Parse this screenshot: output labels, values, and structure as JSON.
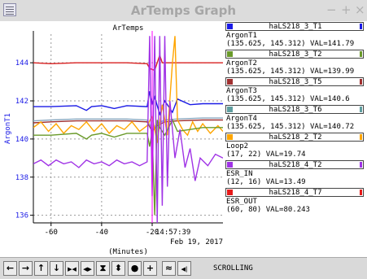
{
  "window": {
    "title": "ArTemps Graph",
    "minimize": "−",
    "maximize": "+",
    "close": "×"
  },
  "chart_data": {
    "type": "line",
    "title": "ArTemps",
    "xlabel": "(Minutes)",
    "ylabel": "ArgonT1",
    "xlim": [
      -67,
      8
    ],
    "ylim": [
      135.6,
      145.5
    ],
    "xticks": [
      "-60",
      "-40",
      "-20"
    ],
    "xtick_values": [
      -60,
      -40,
      -20
    ],
    "yticks": [
      "136",
      "138",
      "140",
      "142",
      "144"
    ],
    "ytick_values": [
      136,
      138,
      140,
      142,
      144
    ],
    "grid": true,
    "time_label": "14:57:39",
    "date_label": "Feb 19, 2017",
    "cursor_x": -20,
    "series": [
      {
        "name": "ArgonT1",
        "color": "#d82020",
        "points": [
          [
            -67,
            144.0
          ],
          [
            -60,
            143.95
          ],
          [
            -50,
            144.0
          ],
          [
            -40,
            144.0
          ],
          [
            -30,
            144.0
          ],
          [
            -22,
            143.95
          ],
          [
            -21,
            143.7
          ],
          [
            -19,
            143.6
          ],
          [
            -17,
            144.4
          ],
          [
            -16,
            144.0
          ],
          [
            -10,
            144.0
          ],
          [
            0,
            144.0
          ],
          [
            8,
            144.0
          ]
        ]
      },
      {
        "name": "ArgonT2",
        "color": "#1a1ae6",
        "points": [
          [
            -67,
            141.7
          ],
          [
            -60,
            141.7
          ],
          [
            -50,
            141.75
          ],
          [
            -46,
            141.5
          ],
          [
            -44,
            141.7
          ],
          [
            -40,
            141.75
          ],
          [
            -35,
            141.6
          ],
          [
            -30,
            141.75
          ],
          [
            -22,
            141.7
          ],
          [
            -21,
            142.5
          ],
          [
            -20,
            141.8
          ],
          [
            -19,
            142.2
          ],
          [
            -17,
            141.3
          ],
          [
            -15,
            142.0
          ],
          [
            -12,
            141.4
          ],
          [
            -10,
            142.1
          ],
          [
            -5,
            141.8
          ],
          [
            0,
            141.85
          ],
          [
            8,
            141.85
          ]
        ]
      },
      {
        "name": "ArgonT3",
        "color": "#a03030",
        "points": [
          [
            -67,
            140.85
          ],
          [
            -60,
            140.9
          ],
          [
            -50,
            140.95
          ],
          [
            -40,
            140.95
          ],
          [
            -30,
            140.95
          ],
          [
            -22,
            140.9
          ],
          [
            -20,
            140.4
          ],
          [
            -18,
            140.7
          ],
          [
            -15,
            140.9
          ],
          [
            -10,
            140.95
          ],
          [
            0,
            141.0
          ],
          [
            8,
            141.0
          ]
        ]
      },
      {
        "name": "ArgonT4",
        "color": "#8aa8c0",
        "points": [
          [
            -67,
            140.95
          ],
          [
            -60,
            141.0
          ],
          [
            -50,
            141.05
          ],
          [
            -40,
            141.05
          ],
          [
            -30,
            141.05
          ],
          [
            -22,
            141.0
          ],
          [
            -20,
            140.5
          ],
          [
            -18,
            140.8
          ],
          [
            -15,
            141.0
          ],
          [
            -10,
            141.05
          ],
          [
            0,
            141.1
          ],
          [
            8,
            141.1
          ]
        ]
      },
      {
        "name": "Loop2",
        "color": "#ffa500",
        "points": [
          [
            -67,
            140.6
          ],
          [
            -64,
            140.9
          ],
          [
            -61,
            140.4
          ],
          [
            -58,
            140.8
          ],
          [
            -55,
            140.3
          ],
          [
            -52,
            140.7
          ],
          [
            -49,
            140.5
          ],
          [
            -46,
            140.9
          ],
          [
            -43,
            140.4
          ],
          [
            -40,
            140.8
          ],
          [
            -37,
            140.3
          ],
          [
            -34,
            140.7
          ],
          [
            -31,
            140.5
          ],
          [
            -28,
            140.9
          ],
          [
            -25,
            140.4
          ],
          [
            -22,
            140.7
          ],
          [
            -20,
            141.2
          ],
          [
            -18,
            139.8
          ],
          [
            -16,
            141.8
          ],
          [
            -14,
            140.2
          ],
          [
            -12,
            144.0
          ],
          [
            -11,
            145.4
          ],
          [
            -10,
            141.0
          ],
          [
            -8,
            140.5
          ],
          [
            -6,
            140.2
          ],
          [
            -4,
            140.9
          ],
          [
            -2,
            140.4
          ],
          [
            0,
            140.8
          ],
          [
            3,
            140.3
          ],
          [
            6,
            140.7
          ],
          [
            8,
            140.4
          ]
        ]
      },
      {
        "name": "ESR_IN",
        "color": "#6a9a2a",
        "points": [
          [
            -67,
            140.2
          ],
          [
            -60,
            140.2
          ],
          [
            -50,
            140.3
          ],
          [
            -46,
            140.0
          ],
          [
            -44,
            140.2
          ],
          [
            -40,
            140.3
          ],
          [
            -35,
            140.1
          ],
          [
            -30,
            140.3
          ],
          [
            -22,
            140.3
          ],
          [
            -21,
            139.6
          ],
          [
            -20,
            140.4
          ],
          [
            -19,
            136.0
          ],
          [
            -18,
            141.0
          ],
          [
            -17,
            140.6
          ],
          [
            -15,
            140.2
          ],
          [
            -12,
            141.0
          ],
          [
            -10,
            140.4
          ],
          [
            -5,
            140.5
          ],
          [
            0,
            140.6
          ],
          [
            8,
            140.6
          ]
        ]
      },
      {
        "name": "ESR_OUT",
        "color": "#a033e6",
        "points": [
          [
            -67,
            138.7
          ],
          [
            -64,
            138.9
          ],
          [
            -61,
            138.6
          ],
          [
            -58,
            138.9
          ],
          [
            -55,
            138.7
          ],
          [
            -52,
            138.8
          ],
          [
            -49,
            138.5
          ],
          [
            -46,
            138.9
          ],
          [
            -43,
            138.7
          ],
          [
            -40,
            138.8
          ],
          [
            -37,
            138.6
          ],
          [
            -34,
            138.9
          ],
          [
            -31,
            138.7
          ],
          [
            -28,
            138.8
          ],
          [
            -25,
            138.6
          ],
          [
            -22,
            138.8
          ],
          [
            -21,
            145.4
          ],
          [
            -20,
            137.0
          ],
          [
            -19,
            145.4
          ],
          [
            -18,
            135.6
          ],
          [
            -17,
            145.4
          ],
          [
            -16,
            136.5
          ],
          [
            -15,
            145.4
          ],
          [
            -14,
            137.5
          ],
          [
            -13,
            142.0
          ],
          [
            -11,
            139.0
          ],
          [
            -9,
            140.5
          ],
          [
            -7,
            138.5
          ],
          [
            -5,
            139.5
          ],
          [
            -3,
            137.8
          ],
          [
            -1,
            139.0
          ],
          [
            2,
            138.6
          ],
          [
            5,
            139.2
          ],
          [
            8,
            139.0
          ]
        ]
      }
    ]
  },
  "legend": [
    {
      "name": "haLS218_3_T1",
      "color": "#1a1ae6",
      "label": "ArgonT1",
      "coords": "(135.625, 145.312) VAL=141.79"
    },
    {
      "name": "haLS218_3_T2",
      "color": "#6a9a2a",
      "label": "ArgonT2",
      "coords": "(135.625, 145.312) VAL=139.99"
    },
    {
      "name": "haLS218_3_T5",
      "color": "#a03030",
      "label": "ArgonT3",
      "coords": "(135.625, 145.312) VAL=140.6"
    },
    {
      "name": "haLS218_3_T6",
      "color": "#5f9ea0",
      "label": "ArgonT4",
      "coords": "(135.625, 145.312) VAL=140.72"
    },
    {
      "name": "haLS218_2_T2",
      "color": "#ffa500",
      "label": "Loop2",
      "coords": "(17, 22) VAL=19.74"
    },
    {
      "name": "haLS218_4_T2",
      "color": "#a033e6",
      "label": "ESR_IN",
      "coords": "(12, 16) VAL=13.49"
    },
    {
      "name": "haLS218_4_T7",
      "color": "#e61a1a",
      "label": "ESR_OUT",
      "coords": "(60, 80) VAL=80.243"
    }
  ],
  "toolbar": {
    "buttons": [
      {
        "name": "scroll-left-button",
        "icon": "arrow-left-icon",
        "glyph": "←"
      },
      {
        "name": "scroll-right-button",
        "icon": "arrow-right-icon",
        "glyph": "→"
      },
      {
        "name": "scroll-up-button",
        "icon": "arrow-up-icon",
        "glyph": "↑"
      },
      {
        "name": "scroll-down-button",
        "icon": "arrow-down-icon",
        "glyph": "↓"
      },
      {
        "name": "zoom-in-x-button",
        "icon": "compress-horizontal-icon",
        "glyph": "▶◀"
      },
      {
        "name": "zoom-out-x-button",
        "icon": "expand-horizontal-icon",
        "glyph": "◀▶"
      },
      {
        "name": "zoom-in-y-button",
        "icon": "compress-vertical-icon",
        "glyph": "⧗"
      },
      {
        "name": "zoom-out-y-button",
        "icon": "expand-vertical-icon",
        "glyph": "⬍"
      },
      {
        "name": "autoscale-button",
        "icon": "circle-icon",
        "glyph": "●"
      },
      {
        "name": "add-button",
        "icon": "plus-icon",
        "glyph": "+"
      },
      {
        "name": "trace-style-button",
        "icon": "wave-icon",
        "glyph": "≈"
      },
      {
        "name": "scrolling-toggle-button",
        "icon": "scroll-to-end-icon",
        "glyph": "◀|"
      }
    ],
    "status": "SCROLLING"
  }
}
